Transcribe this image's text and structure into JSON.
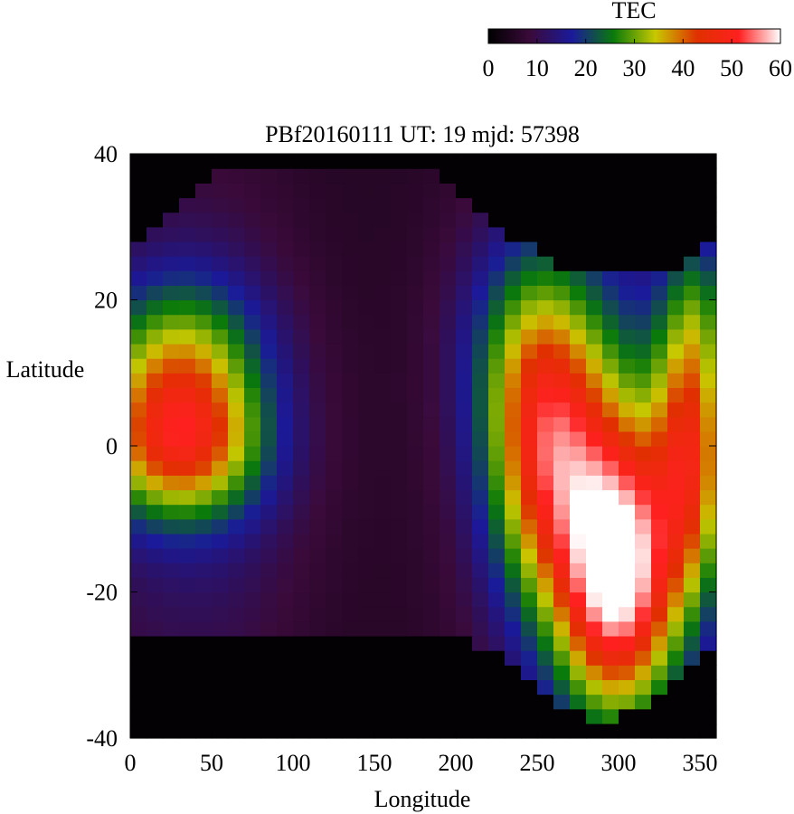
{
  "chart_data": {
    "type": "heatmap",
    "title": "PBf20160111  UT: 19  mjd: 57398",
    "xlabel": "Longitude",
    "ylabel": "Latitude",
    "xlim": [
      0,
      360
    ],
    "ylim": [
      -40,
      40
    ],
    "x_ticks": [
      "0",
      "50",
      "100",
      "150",
      "200",
      "250",
      "300",
      "350"
    ],
    "y_ticks": [
      "40",
      "20",
      "0",
      "-20",
      "-40"
    ],
    "x_tick_values": [
      0,
      50,
      100,
      150,
      200,
      250,
      300,
      350
    ],
    "y_tick_values": [
      40,
      20,
      0,
      -20,
      -40
    ],
    "colorbar": {
      "label": "TEC",
      "range": [
        0,
        60
      ],
      "ticks": [
        "0",
        "10",
        "20",
        "30",
        "40",
        "50",
        "60"
      ],
      "tick_values": [
        0,
        10,
        20,
        30,
        40,
        50,
        60
      ],
      "colormap": [
        "#000000",
        "#3a0a3a",
        "#1a1a9a",
        "#0a7a0a",
        "#c8c800",
        "#e03000",
        "#ff2020",
        "#ffffff"
      ]
    },
    "grid_resolution": {
      "lon_step_deg": 10,
      "lat_step_deg": 2
    },
    "field_features": {
      "equatorial_anomaly_west": {
        "lon_center": 30,
        "lat_peak": 0,
        "tec_peak": 42,
        "northern_crest_lat": 12,
        "northern_crest_tec": 34
      },
      "equatorial_anomaly_east": {
        "lon_center": 300,
        "lat_peak": -18,
        "tec_peak": 53
      },
      "night_side_low": {
        "lon_center": 120,
        "tec": 5
      },
      "polar_caps": {
        "north_boundary_lat": 25,
        "south_boundary_lat": -26,
        "tec": 0
      }
    }
  }
}
